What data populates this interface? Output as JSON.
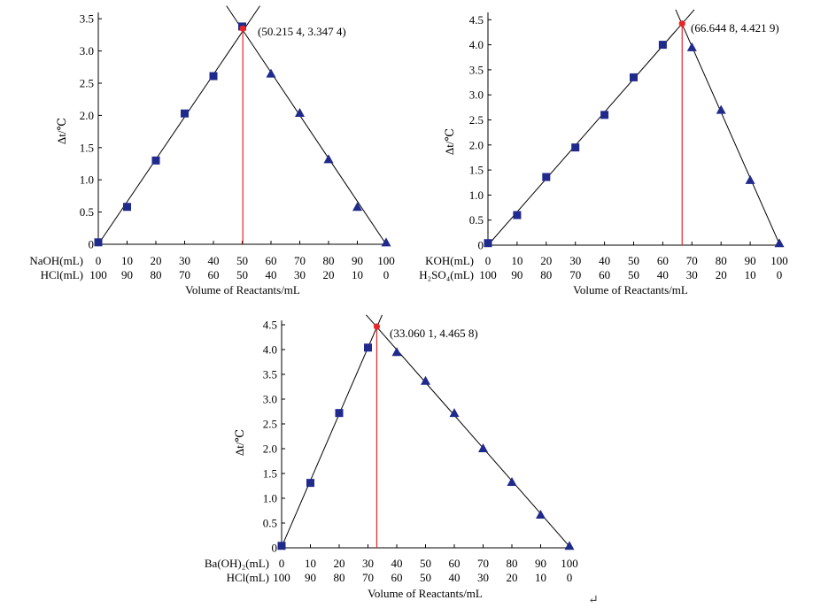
{
  "charts": [
    {
      "id": "naoh-hcl",
      "type": "scatter",
      "ylabel": "Δt/℃",
      "xlabel": "Volume of Reactants/mL",
      "row1_label": "NaOH(mL)",
      "row2_label": "HCl(mL)",
      "row1_ticks": [
        "0",
        "10",
        "20",
        "30",
        "40",
        "50",
        "60",
        "70",
        "80",
        "90",
        "100"
      ],
      "row2_ticks": [
        "100",
        "90",
        "80",
        "70",
        "60",
        "50",
        "40",
        "30",
        "20",
        "10",
        "0"
      ],
      "y_ticks": [
        "0",
        "0.5",
        "1.0",
        "1.5",
        "2.0",
        "2.5",
        "3.0",
        "3.5"
      ],
      "xlim": [
        0,
        100
      ],
      "ylim": [
        0,
        3.5
      ],
      "intersection": {
        "x": 50.2154,
        "y": 3.3474,
        "label": "(50.215 4, 3.347 4)"
      },
      "series": [
        {
          "marker": "square",
          "x": [
            0,
            10,
            20,
            30,
            40
          ],
          "y": [
            0.03,
            0.58,
            1.3,
            2.03,
            2.61
          ]
        },
        {
          "marker": "triangle",
          "x": [
            60,
            70,
            80,
            90,
            100
          ],
          "y": [
            2.65,
            2.04,
            1.32,
            0.58,
            0.03
          ]
        }
      ],
      "extra_square": {
        "x": 50,
        "y": 3.38
      }
    },
    {
      "id": "koh-h2so4",
      "type": "scatter",
      "ylabel": "Δt/℃",
      "xlabel": "Volume of Reactants/mL",
      "row1_label": "KOH(mL)",
      "row2_label": "H₂SO₄(mL)",
      "row1_ticks": [
        "0",
        "10",
        "20",
        "30",
        "40",
        "50",
        "60",
        "70",
        "80",
        "90",
        "100"
      ],
      "row2_ticks": [
        "100",
        "90",
        "80",
        "70",
        "60",
        "50",
        "40",
        "30",
        "20",
        "10",
        "0"
      ],
      "y_ticks": [
        "0",
        "0.5",
        "1.0",
        "1.5",
        "2.0",
        "2.5",
        "3.0",
        "3.5",
        "4.0",
        "4.5"
      ],
      "xlim": [
        0,
        100
      ],
      "ylim": [
        0,
        4.5
      ],
      "intersection": {
        "x": 66.6448,
        "y": 4.4219,
        "label": "(66.644 8, 4.421 9)"
      },
      "series": [
        {
          "marker": "square",
          "x": [
            0,
            10,
            20,
            30,
            40,
            50,
            60
          ],
          "y": [
            0.04,
            0.6,
            1.36,
            1.95,
            2.6,
            3.35,
            4.0
          ]
        },
        {
          "marker": "triangle",
          "x": [
            70,
            80,
            90,
            100
          ],
          "y": [
            3.95,
            2.7,
            1.3,
            0.04
          ]
        }
      ]
    },
    {
      "id": "baoh2-hcl",
      "type": "scatter",
      "ylabel": "Δt/℃",
      "xlabel": "Volume of Reactants/mL",
      "row1_label": "Ba(OH)₂(mL)",
      "row2_label": "HCl(mL)",
      "row1_ticks": [
        "0",
        "10",
        "20",
        "30",
        "40",
        "50",
        "60",
        "70",
        "80",
        "90",
        "100"
      ],
      "row2_ticks": [
        "100",
        "90",
        "80",
        "70",
        "60",
        "50",
        "40",
        "30",
        "20",
        "10",
        "0"
      ],
      "y_ticks": [
        "0",
        "0.5",
        "1.0",
        "1.5",
        "2.0",
        "2.5",
        "3.0",
        "3.5",
        "4.0",
        "4.5"
      ],
      "xlim": [
        0,
        100
      ],
      "ylim": [
        0,
        4.5
      ],
      "intersection": {
        "x": 33.0601,
        "y": 4.4658,
        "label": "(33.060 1, 4.465 8)"
      },
      "series": [
        {
          "marker": "square",
          "x": [
            0,
            10,
            20,
            30
          ],
          "y": [
            0.04,
            1.31,
            2.72,
            4.04
          ]
        },
        {
          "marker": "triangle",
          "x": [
            40,
            50,
            60,
            70,
            80,
            90,
            100
          ],
          "y": [
            3.95,
            3.37,
            2.72,
            2.01,
            1.33,
            0.67,
            0.04
          ]
        }
      ]
    }
  ]
}
